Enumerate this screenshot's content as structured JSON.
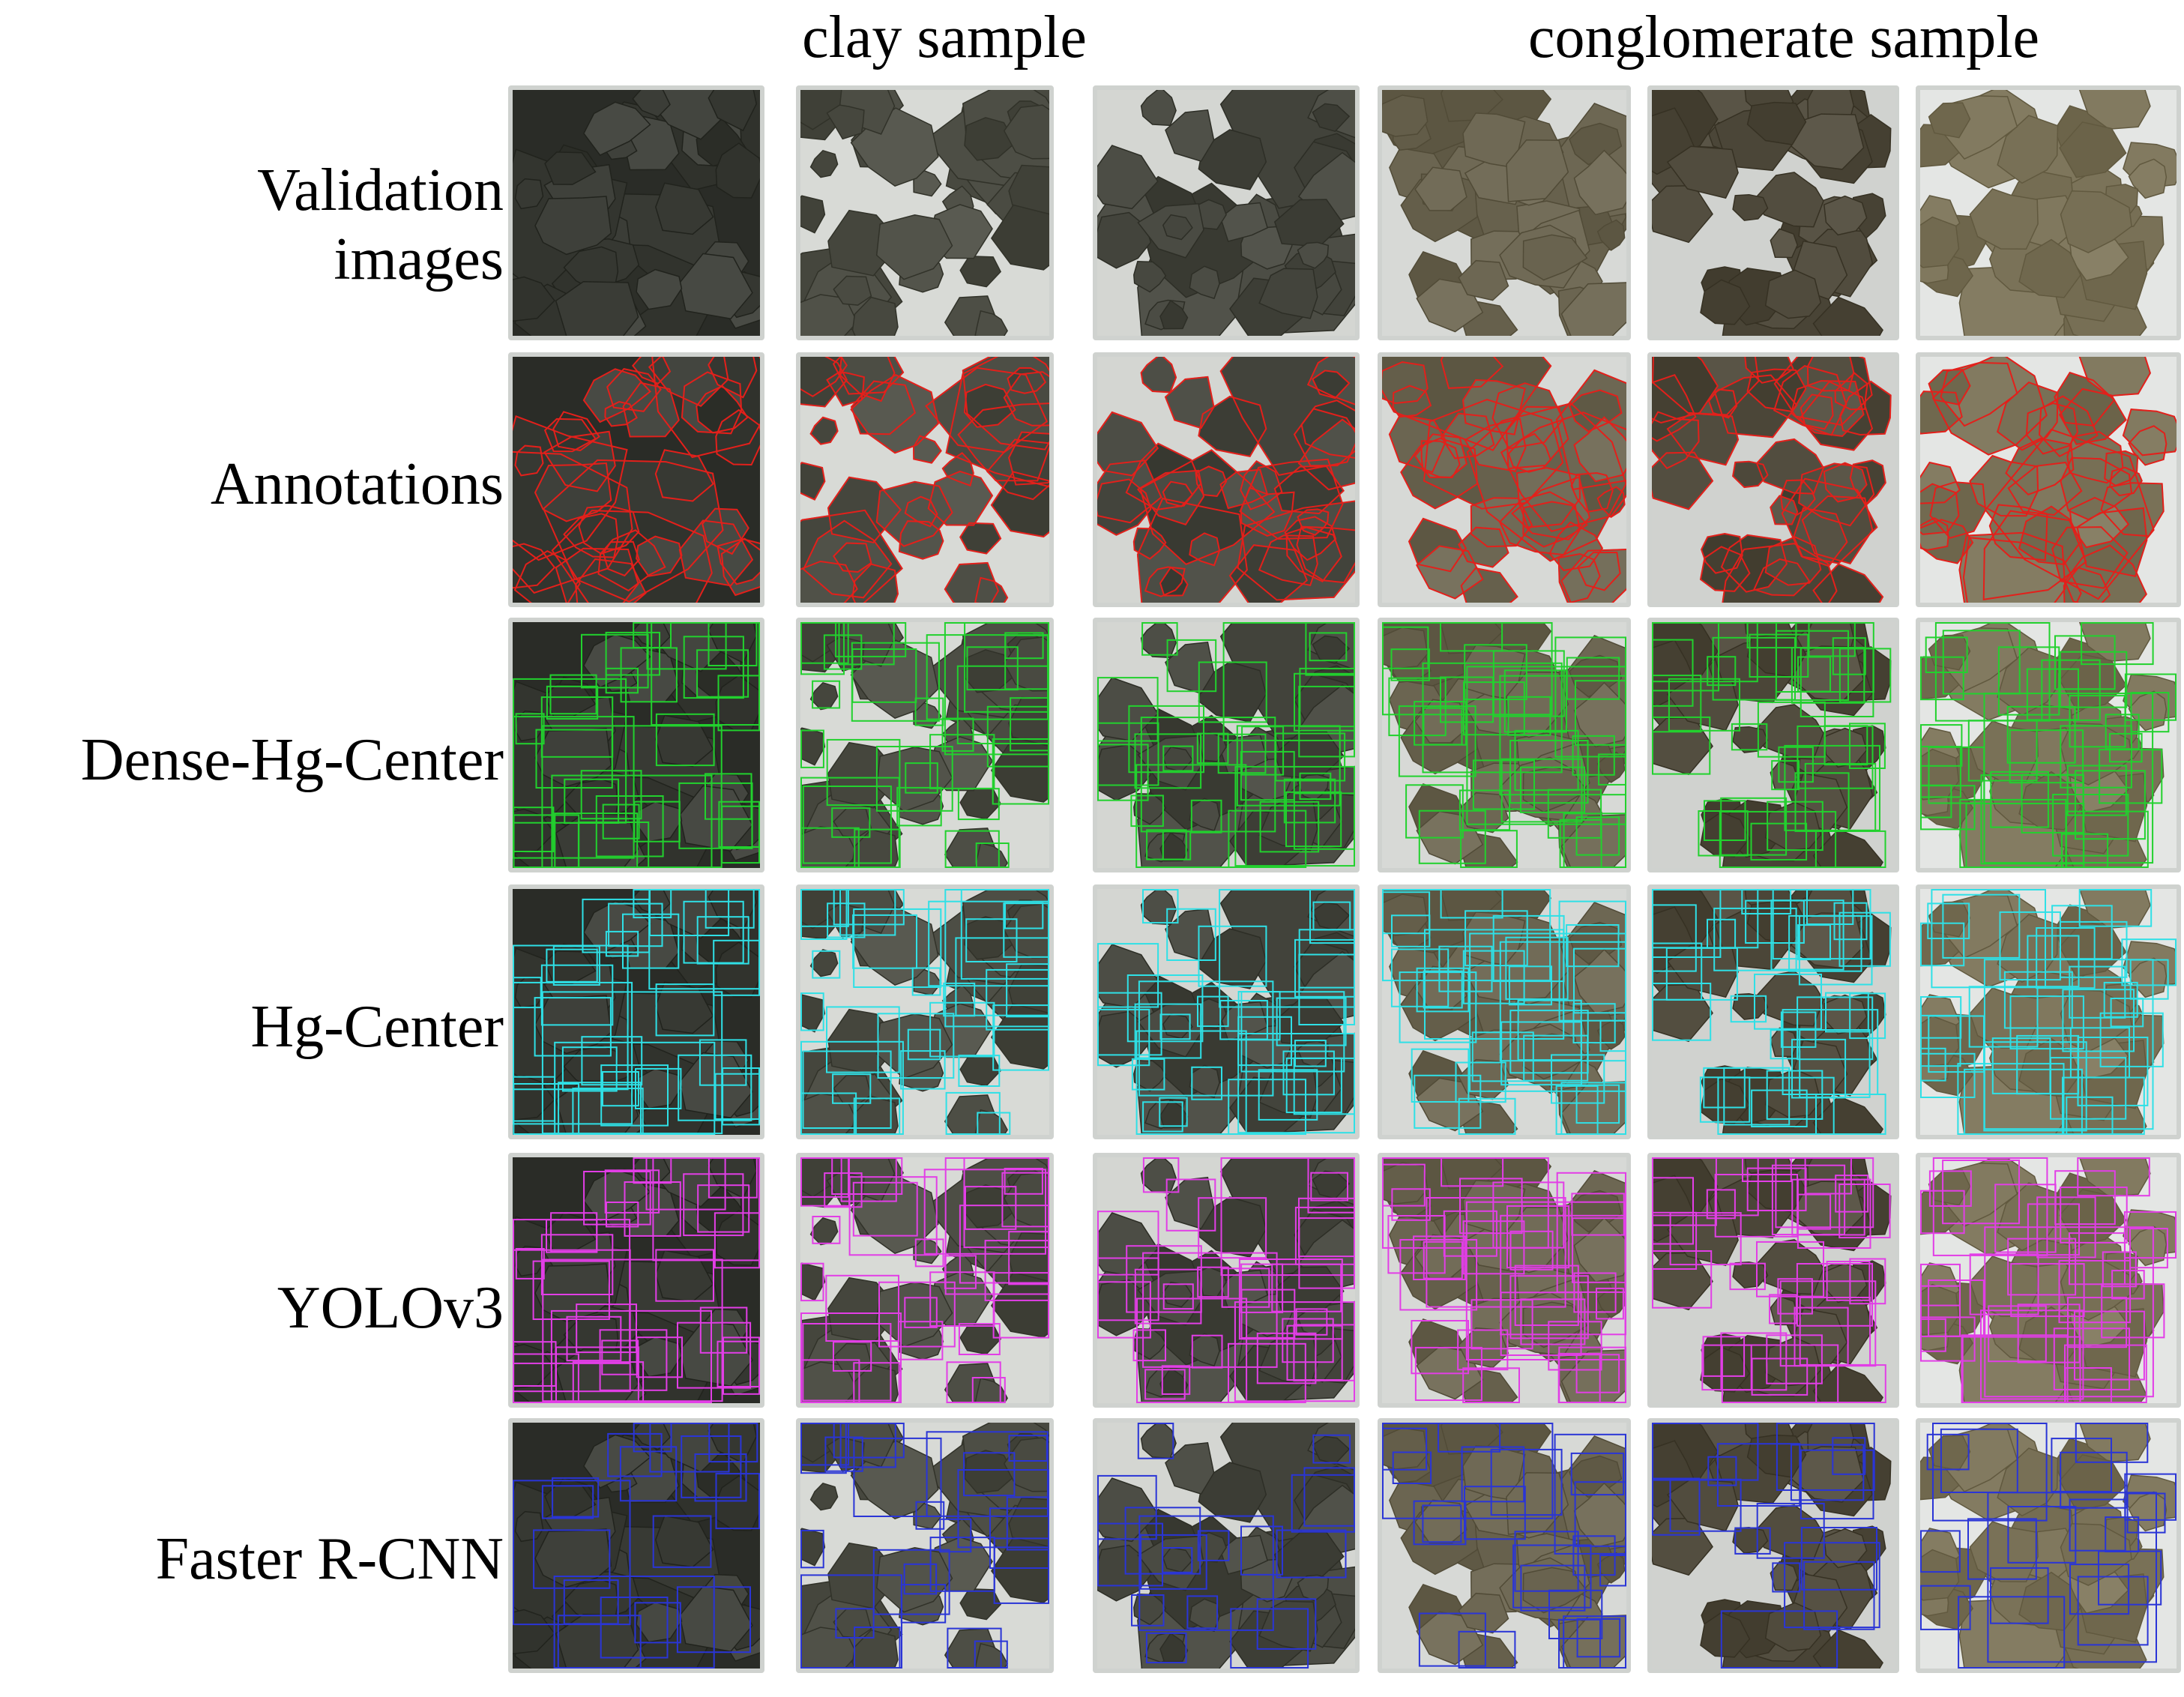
{
  "column_headers": {
    "clay": "clay sample",
    "conglomerate": "conglomerate sample"
  },
  "rows": [
    {
      "id": "validation",
      "label_lines": [
        "Validation",
        "images"
      ],
      "box_color": null,
      "box_style": "none"
    },
    {
      "id": "annotations",
      "label_lines": [
        "Annotations"
      ],
      "box_color": "#e3201b",
      "box_style": "polygon"
    },
    {
      "id": "dense-hg-center",
      "label_lines": [
        "Dense-Hg-Center"
      ],
      "box_color": "#22d12e",
      "box_style": "rect"
    },
    {
      "id": "hg-center",
      "label_lines": [
        "Hg-Center"
      ],
      "box_color": "#2fe0e6",
      "box_style": "rect"
    },
    {
      "id": "yolov3",
      "label_lines": [
        "YOLOv3"
      ],
      "box_color": "#e23ee6",
      "box_style": "rect"
    },
    {
      "id": "faster-rcnn",
      "label_lines": [
        "Faster R-CNN"
      ],
      "box_color": "#2a35d6",
      "box_style": "rect"
    }
  ],
  "samples": [
    {
      "group": "clay",
      "rock_color": "#3a3c36",
      "bg_color": "#2a2c27"
    },
    {
      "group": "clay",
      "rock_color": "#4a4b42",
      "bg_color": "#d8dad6"
    },
    {
      "group": "clay",
      "rock_color": "#46473f",
      "bg_color": "#d4d6d2"
    },
    {
      "group": "conglomerate",
      "rock_color": "#6a6450",
      "bg_color": "#d7d9d6"
    },
    {
      "group": "conglomerate",
      "rock_color": "#4f4a3c",
      "bg_color": "#d0d2cf"
    },
    {
      "group": "conglomerate",
      "rock_color": "#7a7258",
      "bg_color": "#e4e6e4"
    }
  ]
}
